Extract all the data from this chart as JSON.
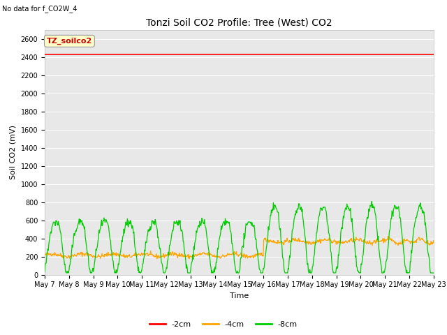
{
  "title": "Tonzi Soil CO2 Profile: Tree (West) CO2",
  "no_data_text": "No data for f_CO2W_4",
  "ylabel": "Soil CO2 (mV)",
  "xlabel": "Time",
  "ylim": [
    0,
    2700
  ],
  "yticks": [
    0,
    200,
    400,
    600,
    800,
    1000,
    1200,
    1400,
    1600,
    1800,
    2000,
    2200,
    2400,
    2600
  ],
  "bg_color": "#e8e8e8",
  "fig_bg_color": "#ffffff",
  "line_red_value": 2430,
  "legend_labels": [
    "-2cm",
    "-4cm",
    "-8cm"
  ],
  "legend_colors": [
    "#ff0000",
    "#ffa500",
    "#00cc00"
  ],
  "annotation_box_text": "TZ_soilco2",
  "annotation_box_color": "#ffffcc",
  "annotation_box_edge_color": "#999999",
  "num_days": 16,
  "start_day": 7,
  "title_fontsize": 10,
  "axis_label_fontsize": 8,
  "tick_fontsize": 7,
  "legend_fontsize": 8,
  "no_data_fontsize": 7,
  "annot_fontsize": 8
}
